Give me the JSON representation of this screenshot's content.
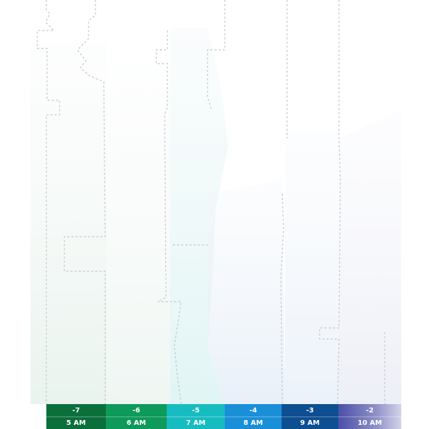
{
  "map": {
    "background": "#ffffff",
    "tint_colors": [
      "#e8f3ee",
      "#e6f7f8",
      "#eaf2fb",
      "#eef0f8"
    ]
  },
  "scale": {
    "segments": [
      {
        "offset": "-7",
        "time": "5 AM",
        "color": "#0b6f3c"
      },
      {
        "offset": "-6",
        "time": "6 AM",
        "color": "#0e9a5a"
      },
      {
        "offset": "-5",
        "time": "7 AM",
        "color": "#17bcc0"
      },
      {
        "offset": "-4",
        "time": "8 AM",
        "color": "#1a8fd8"
      },
      {
        "offset": "-3",
        "time": "9 AM",
        "color": "#0e4f91"
      },
      {
        "offset": "-2",
        "time": "10 AM",
        "color": "#4b4fa8"
      }
    ]
  }
}
